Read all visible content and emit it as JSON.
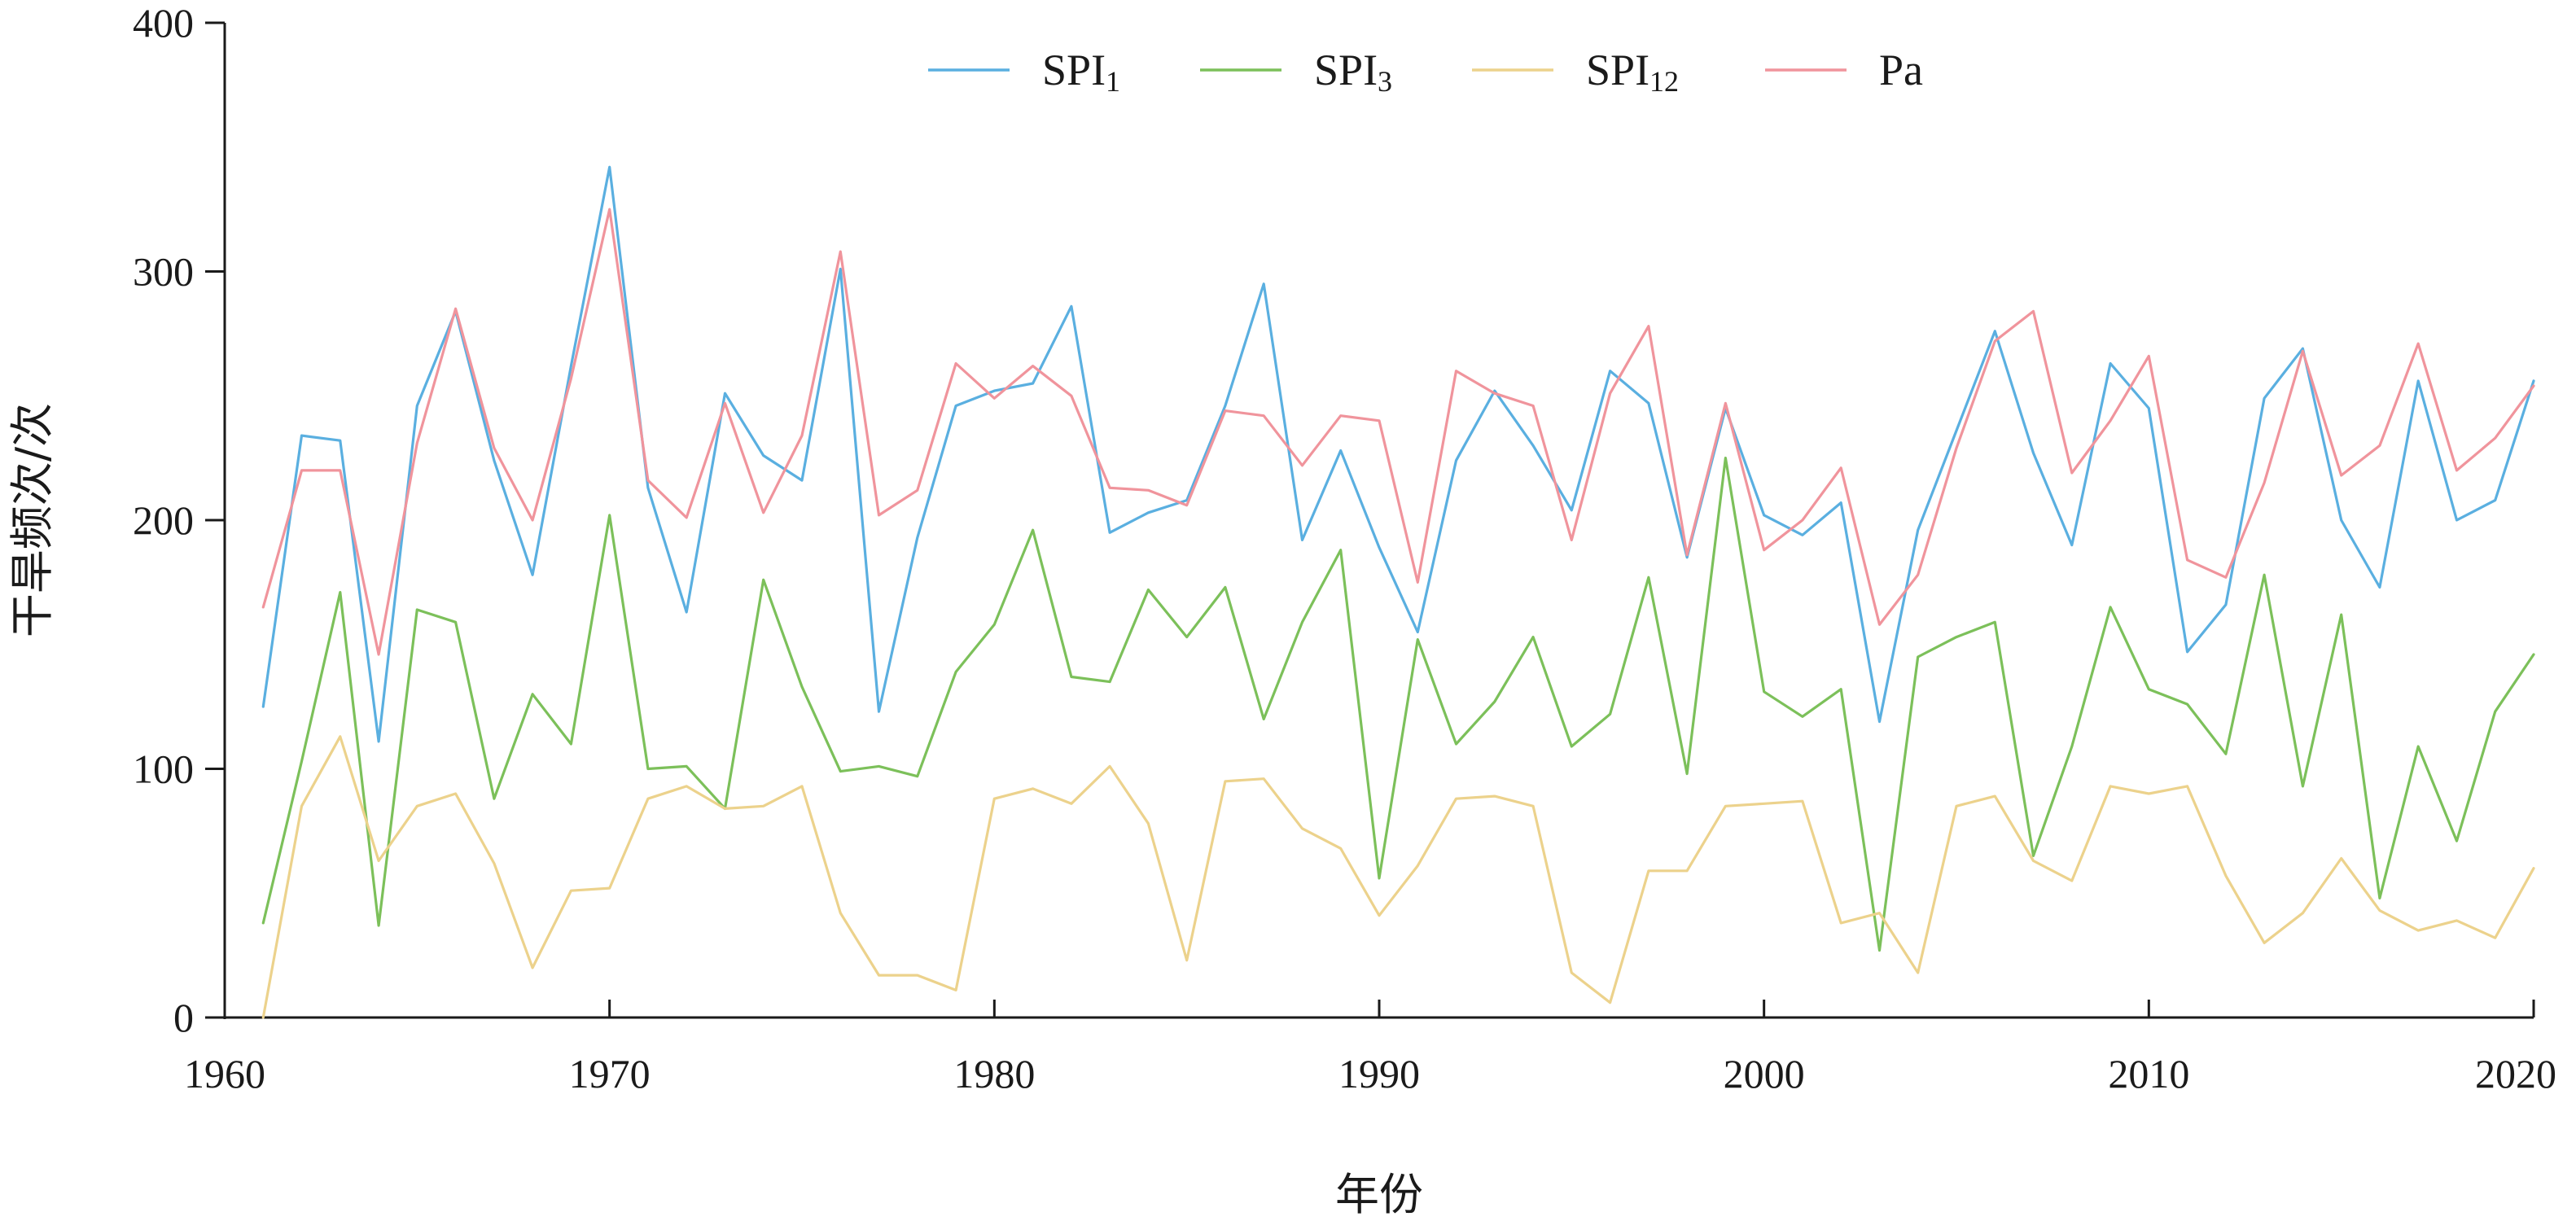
{
  "chart_data": {
    "type": "line",
    "xlabel": "年份",
    "ylabel": "干旱频次/次",
    "xlim": [
      1960,
      2020
    ],
    "ylim": [
      0,
      400
    ],
    "xticks": [
      1960,
      1970,
      1980,
      1990,
      2000,
      2010,
      2020
    ],
    "yticks": [
      0,
      100,
      200,
      300,
      400
    ],
    "grid": false,
    "legend_position": "top-center",
    "x": [
      1961,
      1962,
      1963,
      1964,
      1965,
      1966,
      1967,
      1968,
      1969,
      1970,
      1971,
      1972,
      1973,
      1974,
      1975,
      1976,
      1977,
      1978,
      1979,
      1980,
      1981,
      1982,
      1983,
      1984,
      1985,
      1986,
      1987,
      1988,
      1989,
      1990,
      1991,
      1992,
      1993,
      1994,
      1995,
      1996,
      1997,
      1998,
      1999,
      2000,
      2001,
      2002,
      2003,
      2004,
      2005,
      2006,
      2007,
      2008,
      2009,
      2010,
      2011,
      2012,
      2013,
      2014,
      2015,
      2016,
      2017,
      2018,
      2019,
      2020
    ],
    "series": [
      {
        "name": "SPI1",
        "name_base": "SPI",
        "name_sub": "1",
        "color": "#5aafe0",
        "values": [
          125,
          234,
          232,
          111,
          246,
          284,
          224,
          178,
          262,
          342,
          213,
          163,
          251,
          226,
          216,
          301,
          123,
          193,
          246,
          252,
          255,
          286,
          195,
          203,
          208,
          246,
          295,
          192,
          228,
          189,
          155,
          224,
          252,
          230,
          204,
          260,
          247,
          185,
          245,
          202,
          194,
          207,
          119,
          196,
          236,
          276,
          227,
          190,
          263,
          245,
          147,
          166,
          249,
          269,
          200,
          173,
          256,
          200,
          208,
          256
        ]
      },
      {
        "name": "SPI3",
        "name_base": "SPI",
        "name_sub": "3",
        "color": "#7cc05a",
        "values": [
          38,
          103,
          171,
          37,
          164,
          159,
          88,
          130,
          110,
          202,
          100,
          101,
          84,
          176,
          133,
          99,
          101,
          97,
          139,
          158,
          196,
          137,
          135,
          172,
          153,
          173,
          120,
          159,
          188,
          56,
          152,
          110,
          127,
          153,
          109,
          122,
          177,
          98,
          225,
          131,
          121,
          132,
          27,
          145,
          153,
          159,
          65,
          109,
          165,
          132,
          126,
          106,
          178,
          93,
          162,
          48,
          109,
          71,
          123,
          146
        ]
      },
      {
        "name": "SPI12",
        "name_base": "SPI",
        "name_sub": "12",
        "color": "#ecd28c",
        "values": [
          0,
          85,
          113,
          63,
          85,
          90,
          62,
          20,
          51,
          52,
          88,
          93,
          84,
          85,
          93,
          42,
          17,
          17,
          11,
          88,
          92,
          86,
          101,
          78,
          23,
          95,
          96,
          76,
          68,
          41,
          61,
          88,
          89,
          85,
          18,
          6,
          59,
          59,
          85,
          86,
          87,
          38,
          42,
          18,
          85,
          89,
          63,
          55,
          93,
          90,
          93,
          57,
          30,
          42,
          64,
          43,
          35,
          39,
          32,
          60
        ]
      },
      {
        "name": "Pa",
        "name_base": "Pa",
        "name_sub": "",
        "color": "#f0949c",
        "values": [
          165,
          220,
          220,
          146,
          231,
          285,
          229,
          200,
          257,
          325,
          216,
          201,
          247,
          203,
          234,
          308,
          202,
          212,
          263,
          249,
          262,
          250,
          213,
          212,
          206,
          244,
          242,
          222,
          242,
          240,
          175,
          260,
          251,
          246,
          192,
          251,
          278,
          186,
          247,
          188,
          200,
          221,
          158,
          178,
          229,
          272,
          284,
          219,
          240,
          266,
          184,
          177,
          215,
          268,
          218,
          230,
          271,
          220,
          233,
          254
        ]
      }
    ]
  }
}
